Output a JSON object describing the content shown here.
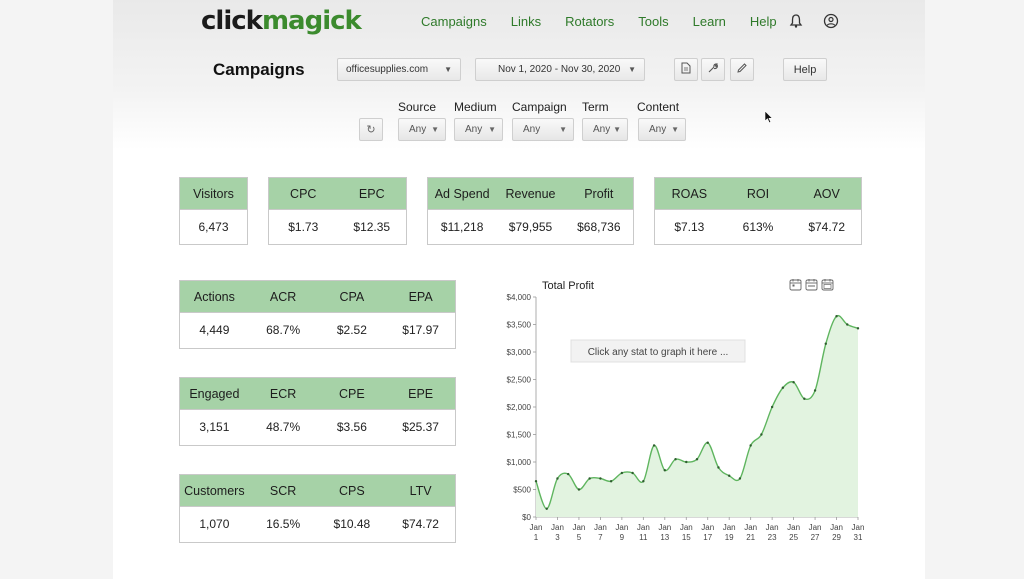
{
  "app": {
    "logo_part1": "click",
    "logo_part2": "magick"
  },
  "nav": {
    "items": [
      "Campaigns",
      "Links",
      "Rotators",
      "Tools",
      "Learn",
      "Help"
    ],
    "icons": [
      "bell-icon",
      "user-icon"
    ]
  },
  "header": {
    "title": "Campaigns",
    "domain_select": "officesupplies.com",
    "date_range": "Nov 1, 2020 - Nov 30, 2020",
    "help_label": "Help",
    "tool_icons": [
      "report-icon",
      "wrench-icon",
      "pencil-icon"
    ]
  },
  "filters": {
    "refresh_icon": "refresh-icon",
    "items": [
      {
        "label": "Source",
        "value": "Any"
      },
      {
        "label": "Medium",
        "value": "Any"
      },
      {
        "label": "Campaign",
        "value": "Any"
      },
      {
        "label": "Term",
        "value": "Any"
      },
      {
        "label": "Content",
        "value": "Any"
      }
    ]
  },
  "stats": {
    "visitors": {
      "headers": [
        "Visitors"
      ],
      "values": [
        "6,473"
      ]
    },
    "cost": {
      "headers": [
        "CPC",
        "EPC"
      ],
      "values": [
        "$1.73",
        "$12.35"
      ]
    },
    "spend": {
      "headers": [
        "Ad Spend",
        "Revenue",
        "Profit"
      ],
      "values": [
        "$11,218",
        "$79,955",
        "$68,736"
      ]
    },
    "returns": {
      "headers": [
        "ROAS",
        "ROI",
        "AOV"
      ],
      "values": [
        "$7.13",
        "613%",
        "$74.72"
      ]
    },
    "actions": {
      "headers": [
        "Actions",
        "ACR",
        "CPA",
        "EPA"
      ],
      "values": [
        "4,449",
        "68.7%",
        "$2.52",
        "$17.97"
      ]
    },
    "engaged": {
      "headers": [
        "Engaged",
        "ECR",
        "CPE",
        "EPE"
      ],
      "values": [
        "3,151",
        "48.7%",
        "$3.56",
        "$25.37"
      ]
    },
    "customers": {
      "headers": [
        "Customers",
        "SCR",
        "CPS",
        "LTV"
      ],
      "values": [
        "1,070",
        "16.5%",
        "$10.48",
        "$74.72"
      ]
    }
  },
  "chart": {
    "hint": "Click any stat to graph it here ...",
    "icons": [
      "calendar-day-icon",
      "calendar-week-icon",
      "calendar-month-icon"
    ]
  },
  "chart_data": {
    "type": "area",
    "title": "Total Profit",
    "ylim": [
      0,
      4000
    ],
    "y_ticks": [
      "$0",
      "$500",
      "$1,000",
      "$1,500",
      "$2,000",
      "$2,500",
      "$3,000",
      "$3,500",
      "$4,000"
    ],
    "x_ticks": [
      [
        "Jan",
        "1"
      ],
      [
        "Jan",
        "3"
      ],
      [
        "Jan",
        "5"
      ],
      [
        "Jan",
        "7"
      ],
      [
        "Jan",
        "9"
      ],
      [
        "Jan",
        "11"
      ],
      [
        "Jan",
        "13"
      ],
      [
        "Jan",
        "15"
      ],
      [
        "Jan",
        "17"
      ],
      [
        "Jan",
        "19"
      ],
      [
        "Jan",
        "21"
      ],
      [
        "Jan",
        "23"
      ],
      [
        "Jan",
        "25"
      ],
      [
        "Jan",
        "27"
      ],
      [
        "Jan",
        "29"
      ],
      [
        "Jan",
        "31"
      ]
    ],
    "x": [
      1,
      2,
      3,
      4,
      5,
      6,
      7,
      8,
      9,
      10,
      11,
      12,
      13,
      14,
      15,
      16,
      17,
      18,
      19,
      20,
      21,
      22,
      23,
      24,
      25,
      26,
      27,
      28,
      29,
      30,
      31
    ],
    "values": [
      650,
      150,
      700,
      780,
      500,
      700,
      700,
      650,
      800,
      800,
      650,
      1300,
      850,
      1050,
      1000,
      1050,
      1350,
      900,
      750,
      700,
      1300,
      1500,
      2000,
      2350,
      2450,
      2150,
      2300,
      3150,
      3650,
      3500,
      3430
    ],
    "color": "#5fb55f",
    "fill": "#e2f3e0",
    "grid": false
  }
}
